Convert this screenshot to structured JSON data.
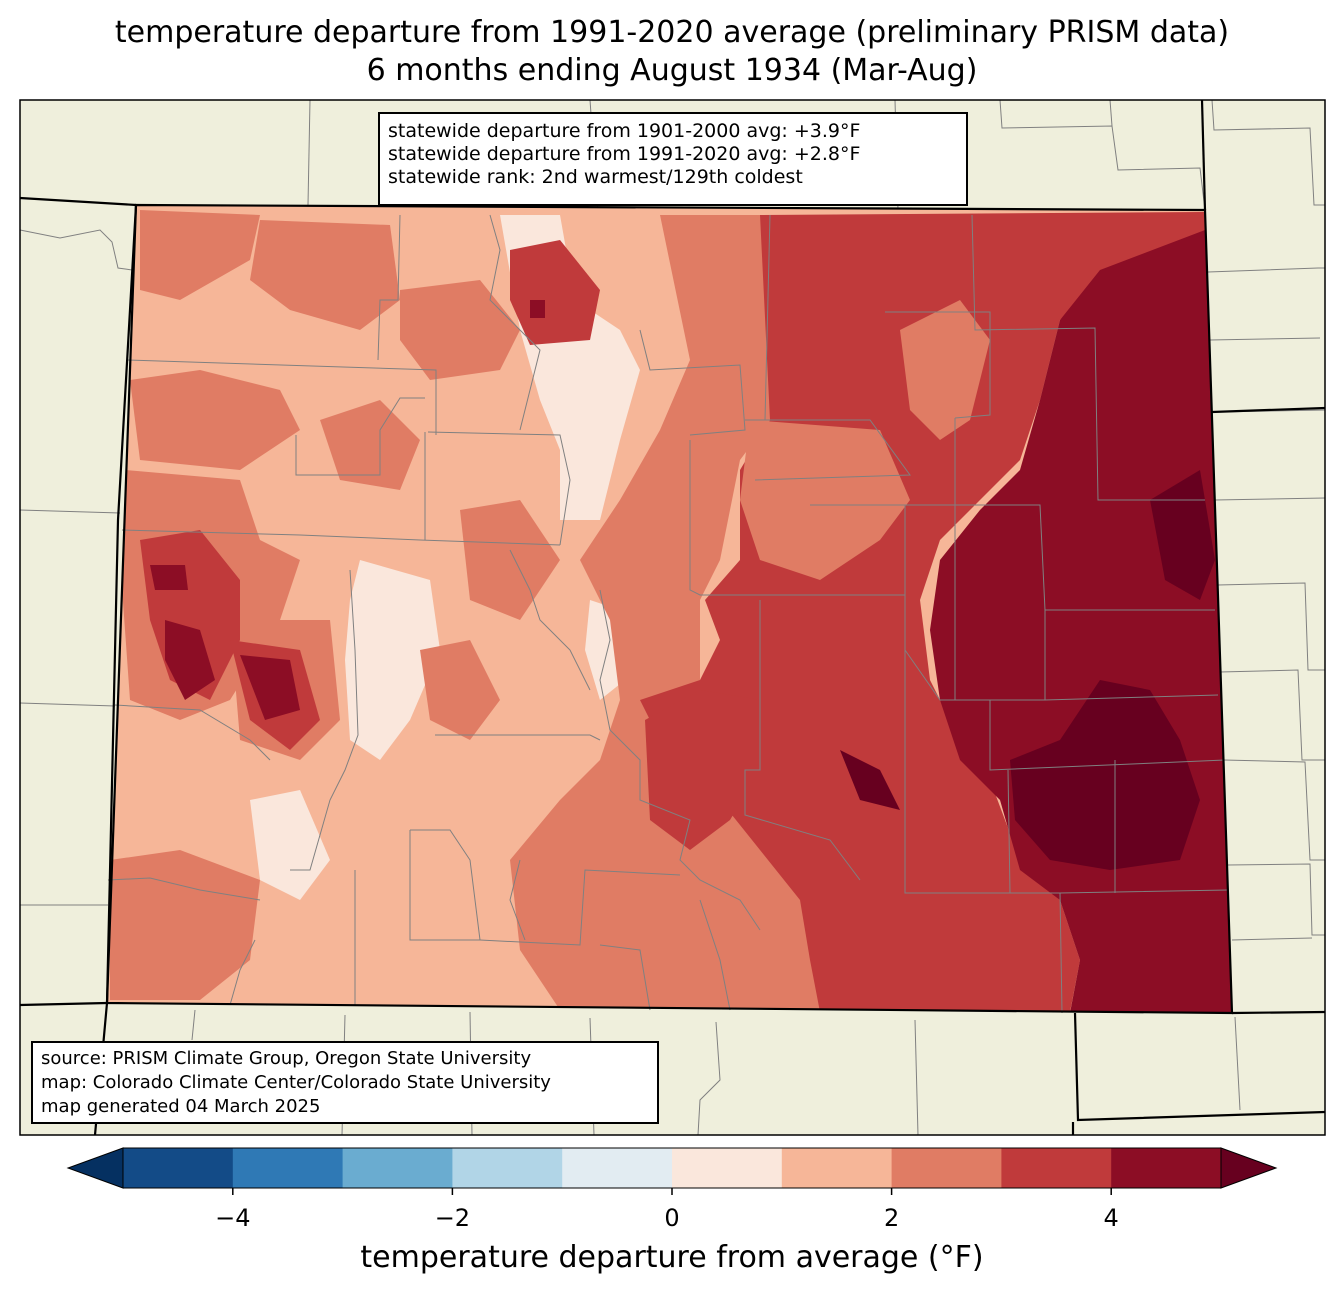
{
  "title": {
    "line1": "temperature departure from 1991-2020 average (preliminary PRISM data)",
    "line2": "6 months ending August 1934 (Mar-Aug)"
  },
  "stats": {
    "line1": "statewide departure from 1901-2000 avg: +3.9°F",
    "line2": "statewide departure from 1991-2020 avg: +2.8°F",
    "line3": "statewide rank: 2nd warmest/129th coldest"
  },
  "credits": {
    "line1": "source: PRISM Climate Group, Oregon State University",
    "line2": "map: Colorado Climate Center/Colorado State University",
    "line3": "map generated 04 March 2025"
  },
  "colorbar": {
    "label": "temperature departure from average (°F)",
    "range": [
      -5,
      5
    ],
    "ticks": [
      {
        "value": -4,
        "label": "−4"
      },
      {
        "value": -2,
        "label": "−2"
      },
      {
        "value": 0,
        "label": "0"
      },
      {
        "value": 2,
        "label": "2"
      },
      {
        "value": 4,
        "label": "4"
      }
    ],
    "bins": [
      {
        "from": -5,
        "to": -4,
        "color": "#134b87"
      },
      {
        "from": -4,
        "to": -3,
        "color": "#2f79b5"
      },
      {
        "from": -3,
        "to": -2,
        "color": "#6aacd0"
      },
      {
        "from": -2,
        "to": -1,
        "color": "#b1d5e7"
      },
      {
        "from": -1,
        "to": 0,
        "color": "#e2ecf2"
      },
      {
        "from": 0,
        "to": 1,
        "color": "#fae7dc"
      },
      {
        "from": 1,
        "to": 2,
        "color": "#f6b698"
      },
      {
        "from": 2,
        "to": 3,
        "color": "#e07c64"
      },
      {
        "from": 3,
        "to": 4,
        "color": "#c03a3b"
      },
      {
        "from": 4,
        "to": 5,
        "color": "#8c0d25"
      }
    ],
    "under_color": "#053061",
    "over_color": "#67001f"
  },
  "colors": {
    "background_land": "#efefdc",
    "county_lines": "#808080",
    "state_lines": "#000000"
  }
}
